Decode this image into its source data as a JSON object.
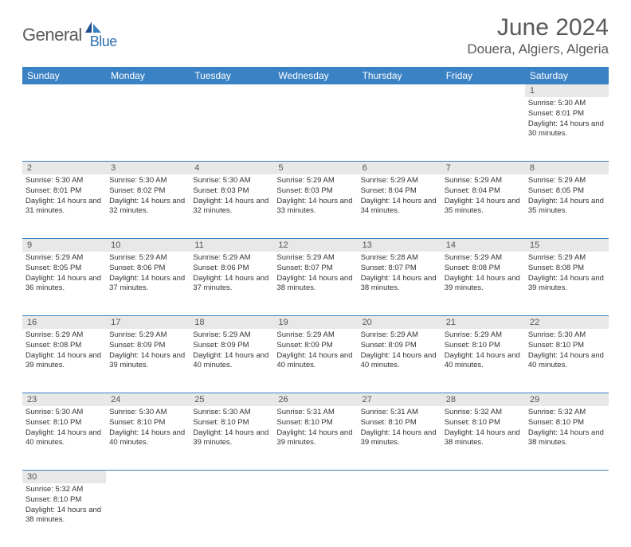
{
  "logo": {
    "part1": "General",
    "part2": "Blue"
  },
  "title": "June 2024",
  "location": "Douera, Algiers, Algeria",
  "colors": {
    "header_bg": "#3b82c4",
    "header_text": "#ffffff",
    "daynum_bg": "#e8e8e8",
    "border": "#3b82c4",
    "logo_gray": "#5a5a5a",
    "logo_blue": "#2c6fb3"
  },
  "dayNames": [
    "Sunday",
    "Monday",
    "Tuesday",
    "Wednesday",
    "Thursday",
    "Friday",
    "Saturday"
  ],
  "weeks": [
    {
      "nums": [
        "",
        "",
        "",
        "",
        "",
        "",
        "1"
      ],
      "cells": [
        null,
        null,
        null,
        null,
        null,
        null,
        {
          "sunrise": "5:30 AM",
          "sunset": "8:01 PM",
          "daylight": "14 hours and 30 minutes."
        }
      ]
    },
    {
      "nums": [
        "2",
        "3",
        "4",
        "5",
        "6",
        "7",
        "8"
      ],
      "cells": [
        {
          "sunrise": "5:30 AM",
          "sunset": "8:01 PM",
          "daylight": "14 hours and 31 minutes."
        },
        {
          "sunrise": "5:30 AM",
          "sunset": "8:02 PM",
          "daylight": "14 hours and 32 minutes."
        },
        {
          "sunrise": "5:30 AM",
          "sunset": "8:03 PM",
          "daylight": "14 hours and 32 minutes."
        },
        {
          "sunrise": "5:29 AM",
          "sunset": "8:03 PM",
          "daylight": "14 hours and 33 minutes."
        },
        {
          "sunrise": "5:29 AM",
          "sunset": "8:04 PM",
          "daylight": "14 hours and 34 minutes."
        },
        {
          "sunrise": "5:29 AM",
          "sunset": "8:04 PM",
          "daylight": "14 hours and 35 minutes."
        },
        {
          "sunrise": "5:29 AM",
          "sunset": "8:05 PM",
          "daylight": "14 hours and 35 minutes."
        }
      ]
    },
    {
      "nums": [
        "9",
        "10",
        "11",
        "12",
        "13",
        "14",
        "15"
      ],
      "cells": [
        {
          "sunrise": "5:29 AM",
          "sunset": "8:05 PM",
          "daylight": "14 hours and 36 minutes."
        },
        {
          "sunrise": "5:29 AM",
          "sunset": "8:06 PM",
          "daylight": "14 hours and 37 minutes."
        },
        {
          "sunrise": "5:29 AM",
          "sunset": "8:06 PM",
          "daylight": "14 hours and 37 minutes."
        },
        {
          "sunrise": "5:29 AM",
          "sunset": "8:07 PM",
          "daylight": "14 hours and 38 minutes."
        },
        {
          "sunrise": "5:28 AM",
          "sunset": "8:07 PM",
          "daylight": "14 hours and 38 minutes."
        },
        {
          "sunrise": "5:29 AM",
          "sunset": "8:08 PM",
          "daylight": "14 hours and 39 minutes."
        },
        {
          "sunrise": "5:29 AM",
          "sunset": "8:08 PM",
          "daylight": "14 hours and 39 minutes."
        }
      ]
    },
    {
      "nums": [
        "16",
        "17",
        "18",
        "19",
        "20",
        "21",
        "22"
      ],
      "cells": [
        {
          "sunrise": "5:29 AM",
          "sunset": "8:08 PM",
          "daylight": "14 hours and 39 minutes."
        },
        {
          "sunrise": "5:29 AM",
          "sunset": "8:09 PM",
          "daylight": "14 hours and 39 minutes."
        },
        {
          "sunrise": "5:29 AM",
          "sunset": "8:09 PM",
          "daylight": "14 hours and 40 minutes."
        },
        {
          "sunrise": "5:29 AM",
          "sunset": "8:09 PM",
          "daylight": "14 hours and 40 minutes."
        },
        {
          "sunrise": "5:29 AM",
          "sunset": "8:09 PM",
          "daylight": "14 hours and 40 minutes."
        },
        {
          "sunrise": "5:29 AM",
          "sunset": "8:10 PM",
          "daylight": "14 hours and 40 minutes."
        },
        {
          "sunrise": "5:30 AM",
          "sunset": "8:10 PM",
          "daylight": "14 hours and 40 minutes."
        }
      ]
    },
    {
      "nums": [
        "23",
        "24",
        "25",
        "26",
        "27",
        "28",
        "29"
      ],
      "cells": [
        {
          "sunrise": "5:30 AM",
          "sunset": "8:10 PM",
          "daylight": "14 hours and 40 minutes."
        },
        {
          "sunrise": "5:30 AM",
          "sunset": "8:10 PM",
          "daylight": "14 hours and 40 minutes."
        },
        {
          "sunrise": "5:30 AM",
          "sunset": "8:10 PM",
          "daylight": "14 hours and 39 minutes."
        },
        {
          "sunrise": "5:31 AM",
          "sunset": "8:10 PM",
          "daylight": "14 hours and 39 minutes."
        },
        {
          "sunrise": "5:31 AM",
          "sunset": "8:10 PM",
          "daylight": "14 hours and 39 minutes."
        },
        {
          "sunrise": "5:32 AM",
          "sunset": "8:10 PM",
          "daylight": "14 hours and 38 minutes."
        },
        {
          "sunrise": "5:32 AM",
          "sunset": "8:10 PM",
          "daylight": "14 hours and 38 minutes."
        }
      ]
    },
    {
      "nums": [
        "30",
        "",
        "",
        "",
        "",
        "",
        ""
      ],
      "cells": [
        {
          "sunrise": "5:32 AM",
          "sunset": "8:10 PM",
          "daylight": "14 hours and 38 minutes."
        },
        null,
        null,
        null,
        null,
        null,
        null
      ]
    }
  ],
  "labels": {
    "sunrise": "Sunrise:",
    "sunset": "Sunset:",
    "daylight": "Daylight:"
  }
}
